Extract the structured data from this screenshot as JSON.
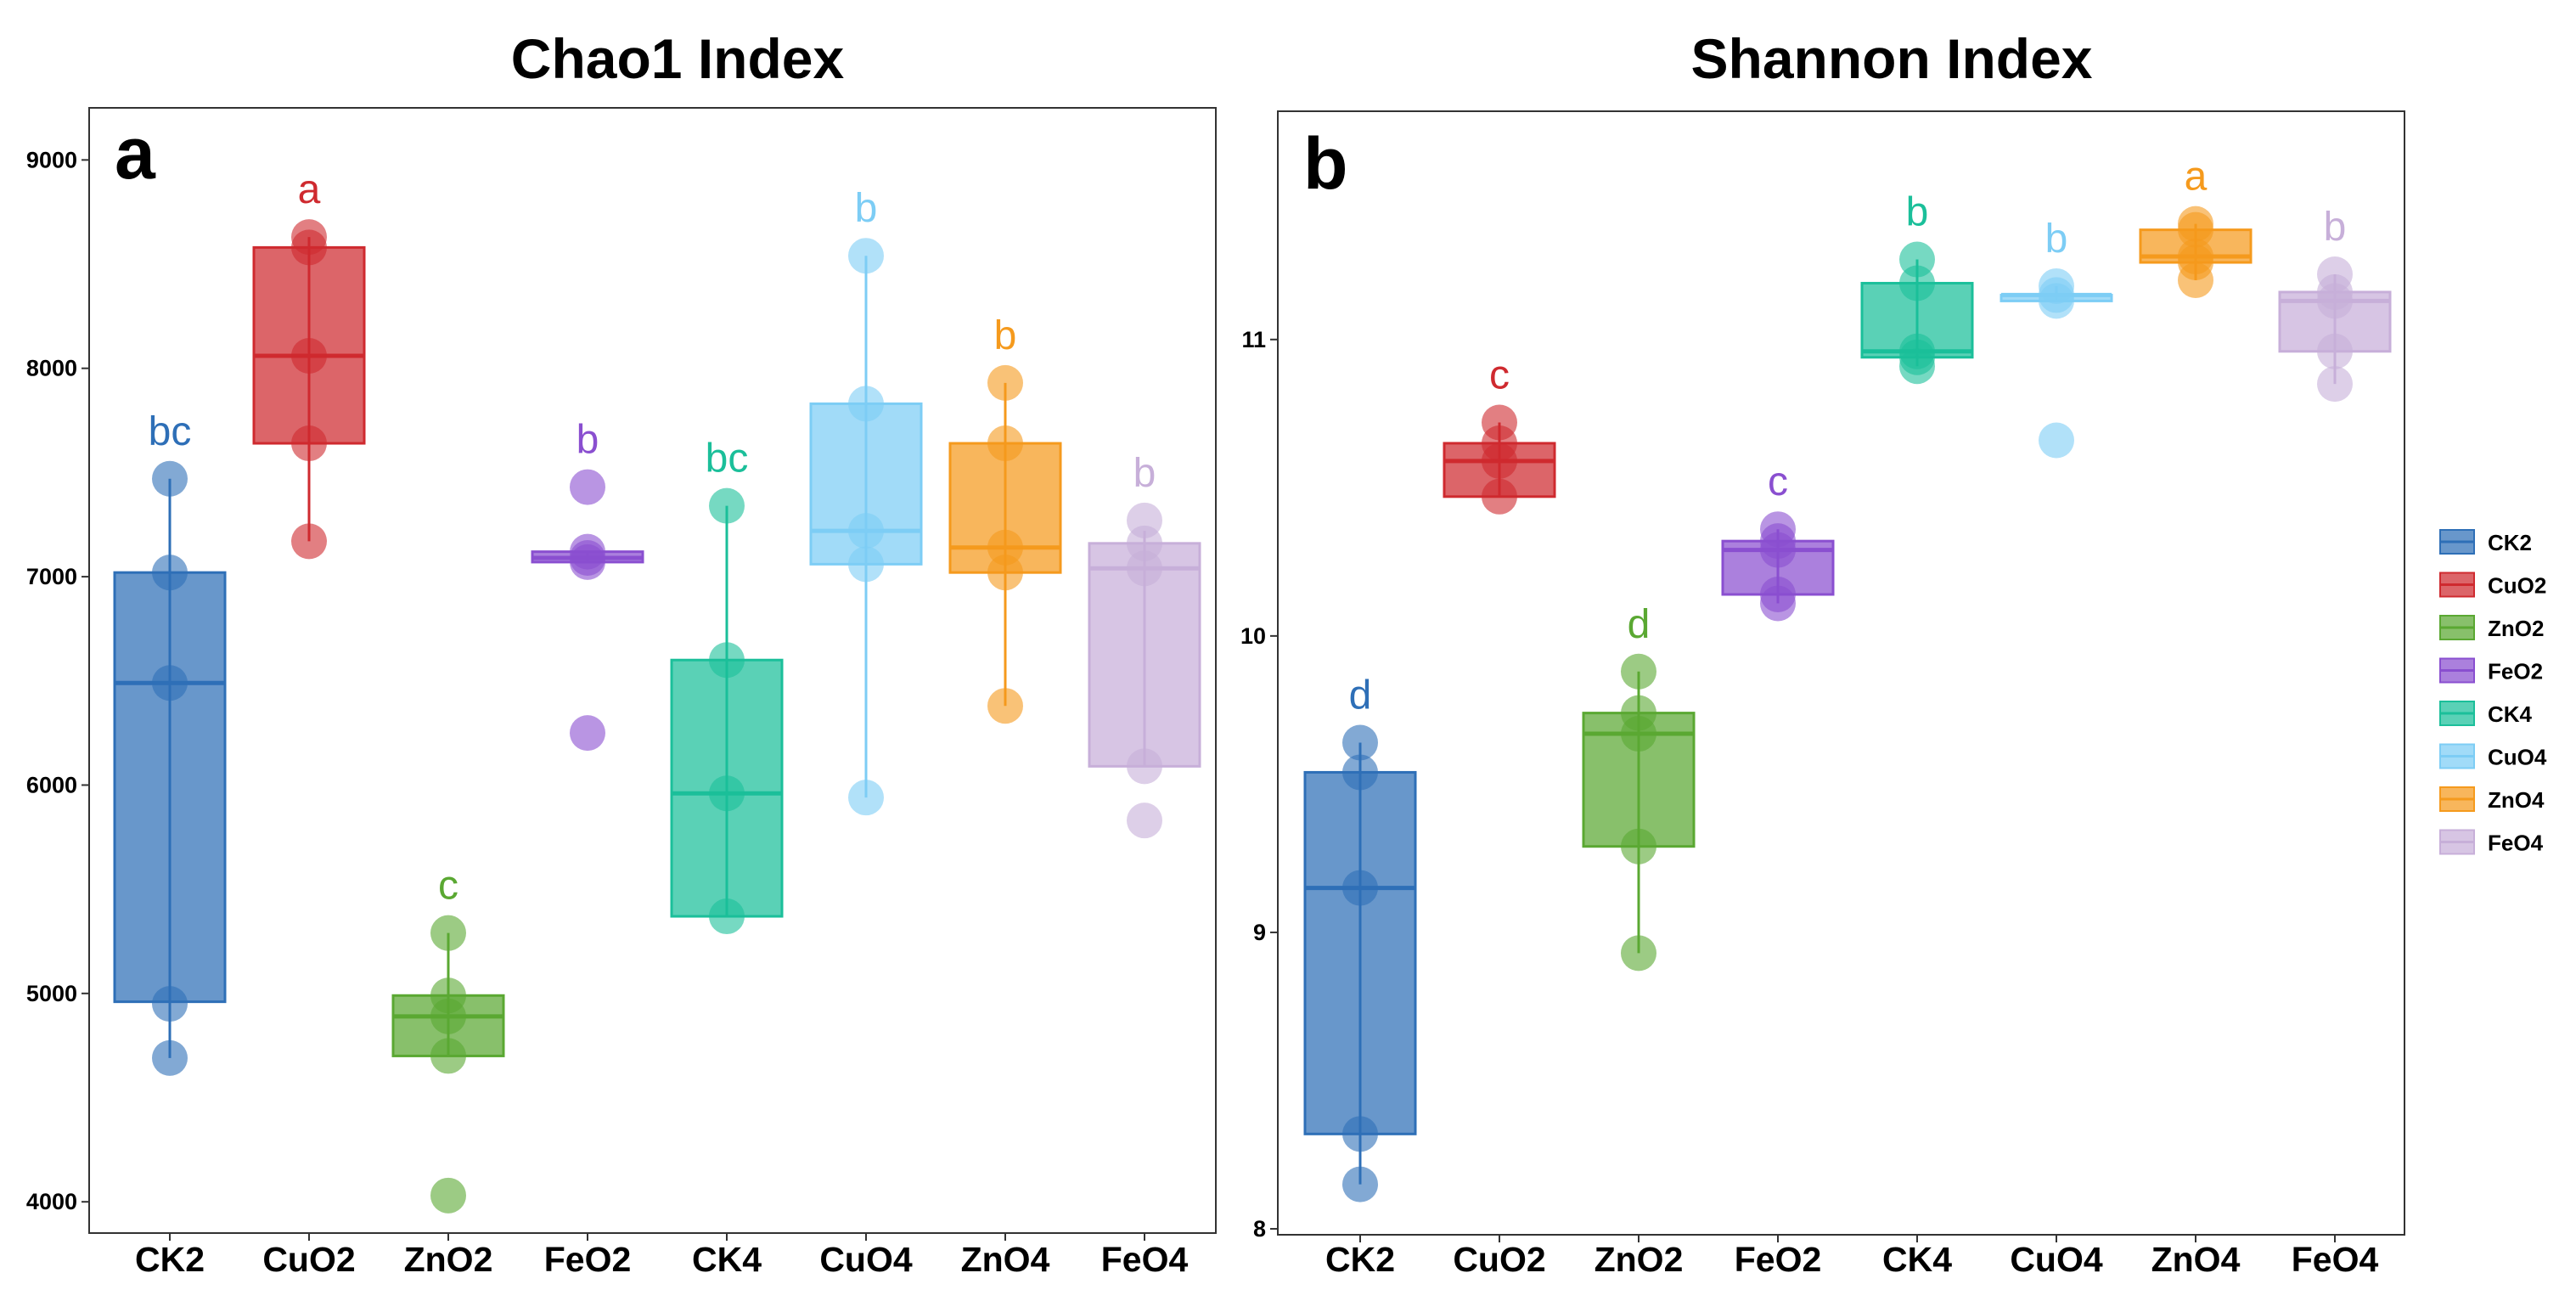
{
  "groups": [
    "CK2",
    "CuO2",
    "ZnO2",
    "FeO2",
    "CK4",
    "CuO4",
    "ZnO4",
    "FeO4"
  ],
  "colors": {
    "CK2": "#2e6fb7",
    "CuO2": "#cf2a2f",
    "ZnO2": "#5aa832",
    "FeO2": "#8a4fd0",
    "CK4": "#1bbf9a",
    "CuO4": "#7dcdf5",
    "ZnO4": "#f59a1d",
    "FeO4": "#c7afd9"
  },
  "legend": {
    "items": [
      "CK2",
      "CuO2",
      "ZnO2",
      "FeO2",
      "CK4",
      "CuO4",
      "ZnO4",
      "FeO4"
    ]
  },
  "chart_data": [
    {
      "id": "chao1",
      "type": "box",
      "title": "Chao1 Index",
      "panel_label": "a",
      "xlabel": "",
      "ylabel": "",
      "ylim": [
        3850,
        9250
      ],
      "yticks": [
        4000,
        5000,
        6000,
        7000,
        8000,
        9000
      ],
      "ytick_labels": [
        "4000",
        "5000",
        "6000",
        "7000",
        "8000",
        "9000"
      ],
      "categories": [
        "CK2",
        "CuO2",
        "ZnO2",
        "FeO2",
        "CK4",
        "CuO4",
        "ZnO4",
        "FeO4"
      ],
      "boxes": [
        {
          "q1": 4960,
          "median": 6490,
          "q3": 7020,
          "whisker_low": 4690,
          "whisker_high": 7470
        },
        {
          "q1": 7640,
          "median": 8060,
          "q3": 8580,
          "whisker_low": 7170,
          "whisker_high": 8630
        },
        {
          "q1": 4700,
          "median": 4890,
          "q3": 4990,
          "whisker_low": 4700,
          "whisker_high": 5290
        },
        {
          "q1": 7070,
          "median": 7090,
          "q3": 7120,
          "whisker_low": 7070,
          "whisker_high": 7120
        },
        {
          "q1": 5370,
          "median": 5960,
          "q3": 6600,
          "whisker_low": 5370,
          "whisker_high": 7340
        },
        {
          "q1": 7060,
          "median": 7220,
          "q3": 7830,
          "whisker_low": 5940,
          "whisker_high": 8540
        },
        {
          "q1": 7020,
          "median": 7140,
          "q3": 7640,
          "whisker_low": 6380,
          "whisker_high": 7930
        },
        {
          "q1": 6090,
          "median": 7040,
          "q3": 7160,
          "whisker_low": 6090,
          "whisker_high": 7220
        }
      ],
      "points": [
        [
          4690,
          4950,
          6490,
          7020,
          7470
        ],
        [
          7170,
          7640,
          8060,
          8580,
          8630
        ],
        [
          4030,
          4700,
          4890,
          4990,
          5290
        ],
        [
          6250,
          7070,
          7090,
          7120,
          7430
        ],
        [
          5370,
          5960,
          6600,
          7340
        ],
        [
          5940,
          7060,
          7220,
          7830,
          8540
        ],
        [
          6380,
          7020,
          7140,
          7640,
          7930
        ],
        [
          5830,
          6090,
          7040,
          7160,
          7270
        ]
      ],
      "significance": [
        "bc",
        "a",
        "c",
        "b",
        "bc",
        "b",
        "b",
        "b"
      ]
    },
    {
      "id": "shannon",
      "type": "box",
      "title": "Shannon Index",
      "panel_label": "b",
      "xlabel": "",
      "ylabel": "",
      "ylim": [
        7.98,
        11.77
      ],
      "yticks": [
        8,
        9,
        10,
        11
      ],
      "ytick_labels": [
        "8",
        "9",
        "10",
        "11"
      ],
      "categories": [
        "CK2",
        "CuO2",
        "ZnO2",
        "FeO2",
        "CK4",
        "CuO4",
        "ZnO4",
        "FeO4"
      ],
      "boxes": [
        {
          "q1": 8.32,
          "median": 9.15,
          "q3": 9.54,
          "whisker_low": 8.15,
          "whisker_high": 9.64
        },
        {
          "q1": 10.47,
          "median": 10.59,
          "q3": 10.65,
          "whisker_low": 10.47,
          "whisker_high": 10.72
        },
        {
          "q1": 9.29,
          "median": 9.67,
          "q3": 9.74,
          "whisker_low": 8.93,
          "whisker_high": 9.88
        },
        {
          "q1": 10.14,
          "median": 10.29,
          "q3": 10.32,
          "whisker_low": 10.11,
          "whisker_high": 10.36
        },
        {
          "q1": 10.94,
          "median": 10.96,
          "q3": 11.19,
          "whisker_low": 10.91,
          "whisker_high": 11.27
        },
        {
          "q1": 11.13,
          "median": 11.15,
          "q3": 11.15,
          "whisker_low": 11.13,
          "whisker_high": 11.18
        },
        {
          "q1": 11.26,
          "median": 11.28,
          "q3": 11.37,
          "whisker_low": 11.2,
          "whisker_high": 11.39
        },
        {
          "q1": 10.96,
          "median": 11.13,
          "q3": 11.16,
          "whisker_low": 10.85,
          "whisker_high": 11.22
        }
      ],
      "points": [
        [
          8.15,
          8.32,
          9.15,
          9.54,
          9.64
        ],
        [
          10.47,
          10.59,
          10.65,
          10.72
        ],
        [
          8.93,
          9.29,
          9.67,
          9.74,
          9.88
        ],
        [
          10.11,
          10.14,
          10.29,
          10.32,
          10.36
        ],
        [
          10.91,
          10.94,
          10.96,
          11.19,
          11.27
        ],
        [
          10.66,
          11.13,
          11.15,
          11.18
        ],
        [
          11.2,
          11.26,
          11.28,
          11.37,
          11.39
        ],
        [
          10.85,
          10.96,
          11.13,
          11.16,
          11.22
        ]
      ],
      "significance": [
        "d",
        "c",
        "d",
        "c",
        "b",
        "b",
        "a",
        "b"
      ]
    }
  ]
}
